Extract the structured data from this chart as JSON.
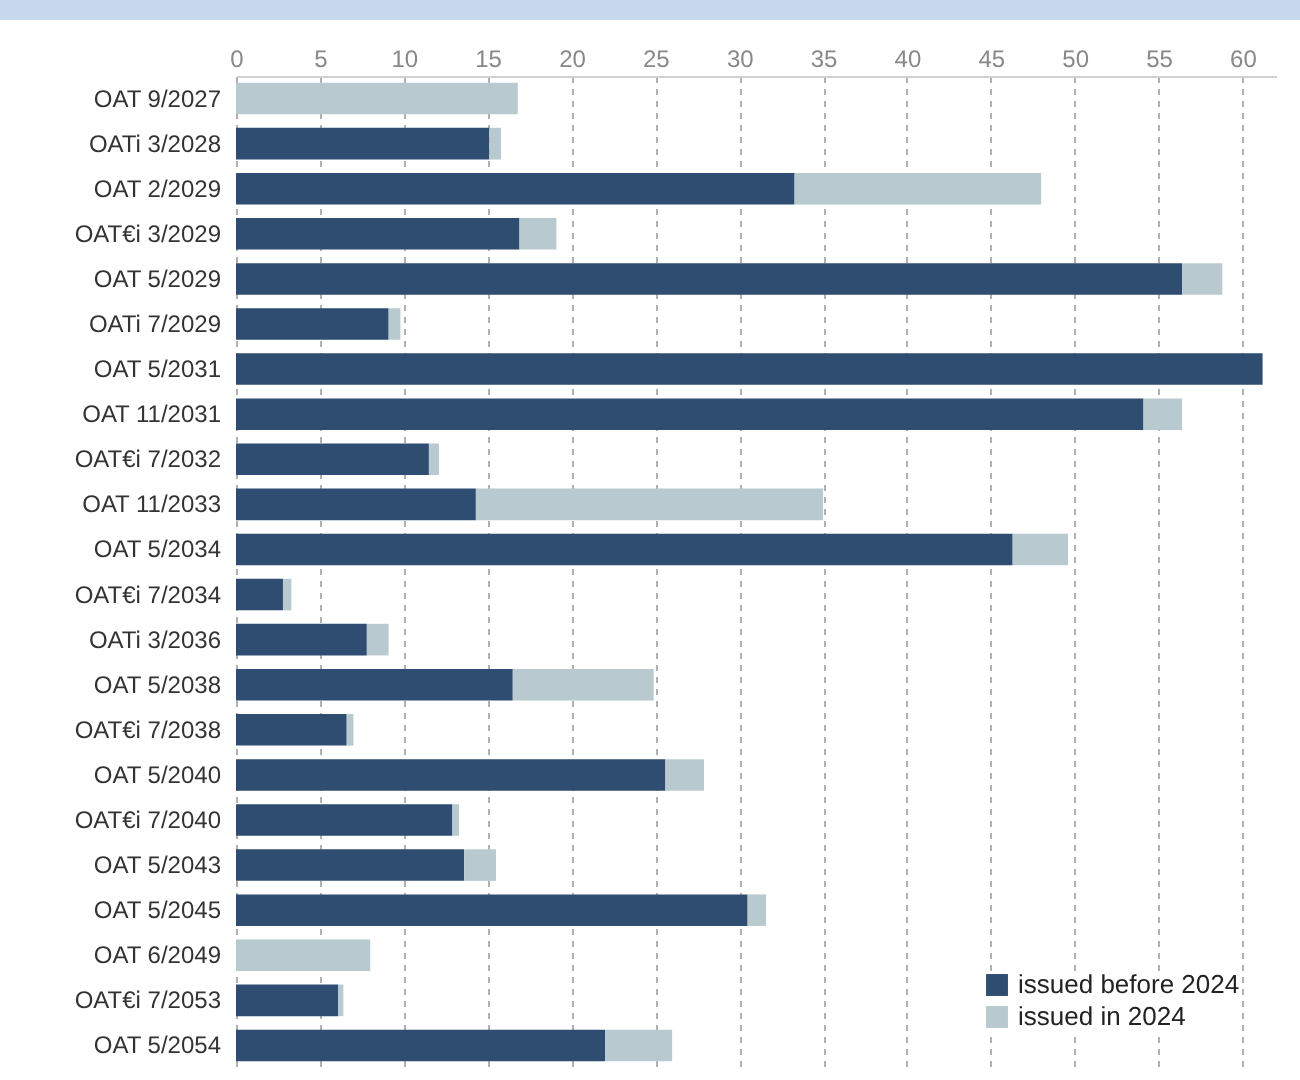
{
  "chart_data": {
    "type": "bar",
    "orientation": "horizontal",
    "stacked": true,
    "categories": [
      "OAT 9/2027",
      "OATi 3/2028",
      "OAT 2/2029",
      "OAT€i 3/2029",
      "OAT 5/2029",
      "OATi 7/2029",
      "OAT 5/2031",
      "OAT 11/2031",
      "OAT€i 7/2032",
      "OAT 11/2033",
      "OAT 5/2034",
      "OAT€i 7/2034",
      "OATi 3/2036",
      "OAT 5/2038",
      "OAT€i 7/2038",
      "OAT 5/2040",
      "OAT€i 7/2040",
      "OAT 5/2043",
      "OAT 5/2045",
      "OAT 6/2049",
      "OAT€i 7/2053",
      "OAT 5/2054"
    ],
    "series": [
      {
        "name": "issued before 2024",
        "color": "#2e4d70",
        "values": [
          null,
          15.1,
          33.3,
          16.9,
          56.4,
          9.1,
          61.2,
          54.1,
          11.5,
          14.3,
          46.3,
          2.8,
          7.8,
          16.5,
          6.6,
          25.6,
          12.9,
          13.6,
          30.5,
          null,
          6.1,
          22.0
        ]
      },
      {
        "name": "issued in 2024",
        "color": "#b8cacf",
        "values": [
          16.8,
          0.7,
          14.7,
          2.2,
          2.4,
          0.7,
          null,
          2.3,
          0.6,
          20.7,
          3.3,
          0.5,
          1.3,
          8.4,
          0.4,
          2.3,
          0.4,
          1.9,
          1.1,
          8.0,
          0.3,
          4.0
        ]
      }
    ],
    "xlim": [
      0,
      62
    ],
    "xticks": [
      0,
      5,
      10,
      15,
      20,
      25,
      30,
      35,
      40,
      45,
      50,
      55,
      60
    ],
    "grid": "x",
    "legend": "bottom right"
  }
}
